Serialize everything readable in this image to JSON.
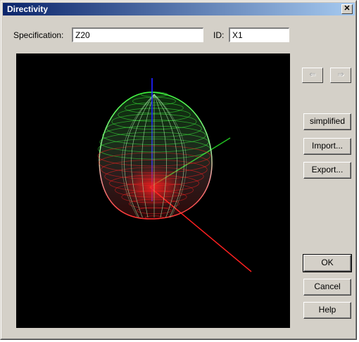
{
  "window": {
    "title": "Directivity",
    "close_glyph": "✕"
  },
  "form": {
    "spec_label": "Specification:",
    "spec_value": "Z20",
    "id_label": "ID:",
    "id_value": "X1"
  },
  "nav": {
    "prev_glyph": "⇐",
    "next_glyph": "⇒"
  },
  "buttons": {
    "simplified": "simplified",
    "import": "Import...",
    "export": "Export...",
    "ok": "OK",
    "cancel": "Cancel",
    "help": "Help"
  },
  "colors": {
    "axis_x": "#ff2020",
    "axis_y": "#20c020",
    "axis_z": "#2020ff",
    "mesh_top": "#40ff40",
    "mesh_bottom": "#ff2020"
  }
}
